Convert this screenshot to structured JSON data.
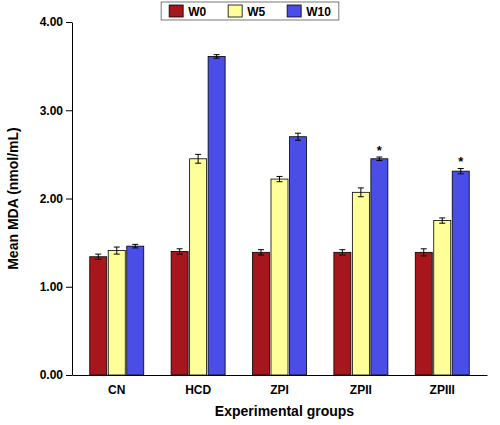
{
  "chart_data": {
    "type": "bar",
    "x_label": "Experimental groups",
    "y_label": "Mean MDA (nmol/mL)",
    "categories": [
      "CN",
      "HCD",
      "ZPI",
      "ZPII",
      "ZPIII"
    ],
    "series": [
      {
        "name": "W0",
        "color": "#a6161c",
        "values": [
          1.34,
          1.4,
          1.39,
          1.39,
          1.39
        ],
        "errors": [
          0.03,
          0.03,
          0.03,
          0.03,
          0.04
        ]
      },
      {
        "name": "W5",
        "color": "#ffff99",
        "values": [
          1.41,
          2.45,
          2.22,
          2.07,
          1.75
        ],
        "errors": [
          0.04,
          0.05,
          0.03,
          0.05,
          0.03
        ]
      },
      {
        "name": "W10",
        "color": "#4a4ee6",
        "values": [
          1.46,
          3.61,
          2.7,
          2.45,
          2.31
        ],
        "errors": [
          0.02,
          0.02,
          0.04,
          0.02,
          0.03
        ]
      }
    ],
    "ylim": [
      0,
      4
    ],
    "yticks": [
      {
        "value": 0,
        "label": "0.00"
      },
      {
        "value": 1,
        "label": "1.00"
      },
      {
        "value": 2,
        "label": "2.00"
      },
      {
        "value": 3,
        "label": "3.00"
      },
      {
        "value": 4,
        "label": "4.00"
      }
    ],
    "grid": false,
    "legend": "top",
    "annotations": [
      {
        "text": "*",
        "category": "ZPII",
        "series": "W10"
      },
      {
        "text": "*",
        "category": "ZPIII",
        "series": "W10"
      }
    ]
  }
}
